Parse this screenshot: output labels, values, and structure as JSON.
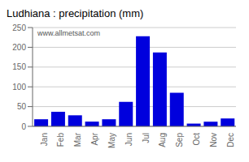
{
  "chart_data": {
    "type": "bar",
    "title": "Ludhiana : precipitation (mm)",
    "categories": [
      "Jan",
      "Feb",
      "Mar",
      "Apr",
      "May",
      "Jun",
      "Jul",
      "Aug",
      "Sep",
      "Oct",
      "Nov",
      "Dec"
    ],
    "values": [
      18,
      37,
      28,
      12,
      18,
      62,
      228,
      187,
      85,
      7,
      12,
      20
    ],
    "color": "#0000dd",
    "ylim": [
      0,
      250
    ],
    "yticks": [
      0,
      50,
      100,
      150,
      200,
      250
    ],
    "grid": true,
    "annotations": [
      "www.allmetsat.com"
    ]
  }
}
